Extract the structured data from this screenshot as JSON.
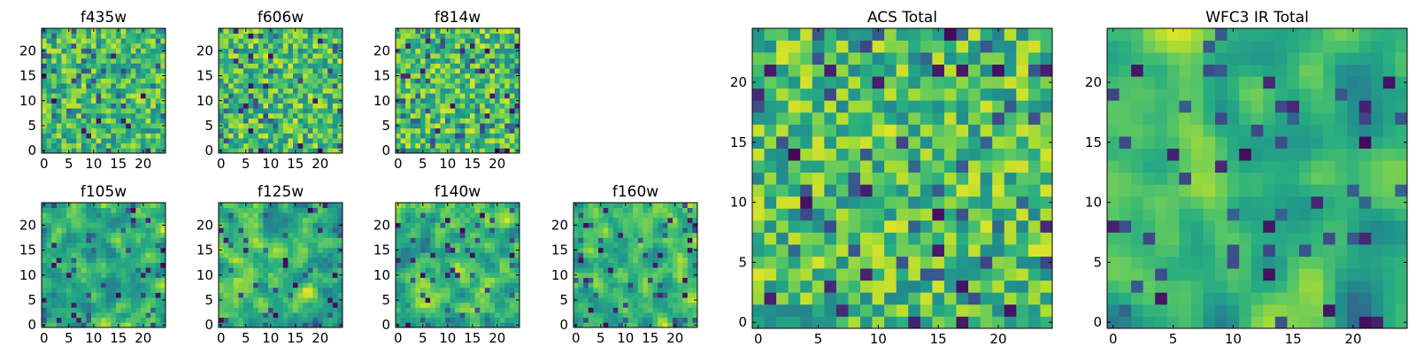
{
  "figure": {
    "colormap": "viridis",
    "frame_color": "#000000",
    "background": "#ffffff"
  },
  "chart_data": [
    {
      "type": "heatmap",
      "title": "f435w",
      "grid": [
        25,
        25
      ],
      "xlim": [
        0,
        24
      ],
      "ylim": [
        0,
        24
      ],
      "xticks": [
        0,
        5,
        10,
        15,
        20
      ],
      "yticks": [
        0,
        5,
        10,
        15,
        20
      ],
      "xlabel": "",
      "ylabel": "",
      "seed": 11,
      "smooth": 0,
      "low": 0.45,
      "high": 0.92,
      "value_range": [
        0,
        1
      ]
    },
    {
      "type": "heatmap",
      "title": "f606w",
      "grid": [
        25,
        25
      ],
      "xlim": [
        0,
        24
      ],
      "ylim": [
        0,
        24
      ],
      "xticks": [
        0,
        5,
        10,
        15,
        20
      ],
      "yticks": [
        0,
        5,
        10,
        15,
        20
      ],
      "xlabel": "",
      "ylabel": "",
      "seed": 23,
      "smooth": 0,
      "low": 0.45,
      "high": 0.95,
      "value_range": [
        0,
        1
      ]
    },
    {
      "type": "heatmap",
      "title": "f814w",
      "grid": [
        25,
        25
      ],
      "xlim": [
        0,
        24
      ],
      "ylim": [
        0,
        24
      ],
      "xticks": [
        0,
        5,
        10,
        15,
        20
      ],
      "yticks": [
        0,
        5,
        10,
        15,
        20
      ],
      "xlabel": "",
      "ylabel": "",
      "seed": 37,
      "smooth": 0,
      "low": 0.45,
      "high": 0.95,
      "value_range": [
        0,
        1
      ]
    },
    {
      "type": "heatmap",
      "title": "f105w",
      "grid": [
        25,
        25
      ],
      "xlim": [
        0,
        24
      ],
      "ylim": [
        0,
        24
      ],
      "xticks": [
        0,
        5,
        10,
        15,
        20
      ],
      "yticks": [
        0,
        5,
        10,
        15,
        20
      ],
      "xlabel": "",
      "ylabel": "",
      "seed": 41,
      "smooth": 1,
      "low": 0.35,
      "high": 0.95,
      "value_range": [
        0,
        1
      ]
    },
    {
      "type": "heatmap",
      "title": "f125w",
      "grid": [
        25,
        25
      ],
      "xlim": [
        0,
        24
      ],
      "ylim": [
        0,
        24
      ],
      "xticks": [
        0,
        5,
        10,
        15,
        20
      ],
      "yticks": [
        0,
        5,
        10,
        15,
        20
      ],
      "xlabel": "",
      "ylabel": "",
      "seed": 53,
      "smooth": 1,
      "low": 0.35,
      "high": 0.95,
      "value_range": [
        0,
        1
      ]
    },
    {
      "type": "heatmap",
      "title": "f140w",
      "grid": [
        25,
        25
      ],
      "xlim": [
        0,
        24
      ],
      "ylim": [
        0,
        24
      ],
      "xticks": [
        0,
        5,
        10,
        15,
        20
      ],
      "yticks": [
        0,
        5,
        10,
        15,
        20
      ],
      "xlabel": "",
      "ylabel": "",
      "seed": 67,
      "smooth": 1,
      "low": 0.35,
      "high": 0.95,
      "value_range": [
        0,
        1
      ]
    },
    {
      "type": "heatmap",
      "title": "f160w",
      "grid": [
        25,
        25
      ],
      "xlim": [
        0,
        24
      ],
      "ylim": [
        0,
        24
      ],
      "xticks": [
        0,
        5,
        10,
        15,
        20
      ],
      "yticks": [
        0,
        5,
        10,
        15,
        20
      ],
      "xlabel": "",
      "ylabel": "",
      "seed": 79,
      "smooth": 1,
      "low": 0.35,
      "high": 0.95,
      "value_range": [
        0,
        1
      ]
    },
    {
      "type": "heatmap",
      "title": "ACS Total",
      "grid": [
        25,
        25
      ],
      "xlim": [
        0,
        24
      ],
      "ylim": [
        0,
        24
      ],
      "xticks": [
        0,
        5,
        10,
        15,
        20
      ],
      "yticks": [
        0,
        5,
        10,
        15,
        20
      ],
      "xlabel": "",
      "ylabel": "",
      "seed": 97,
      "smooth": 0,
      "low": 0.45,
      "high": 0.95,
      "value_range": [
        0,
        1
      ]
    },
    {
      "type": "heatmap",
      "title": "WFC3 IR Total",
      "grid": [
        25,
        25
      ],
      "xlim": [
        0,
        24
      ],
      "ylim": [
        0,
        24
      ],
      "xticks": [
        0,
        5,
        10,
        15,
        20
      ],
      "yticks": [
        0,
        5,
        10,
        15,
        20
      ],
      "xlabel": "",
      "ylabel": "",
      "seed": 131,
      "smooth": 2,
      "low": 0.35,
      "high": 0.95,
      "value_range": [
        0,
        1
      ]
    }
  ]
}
